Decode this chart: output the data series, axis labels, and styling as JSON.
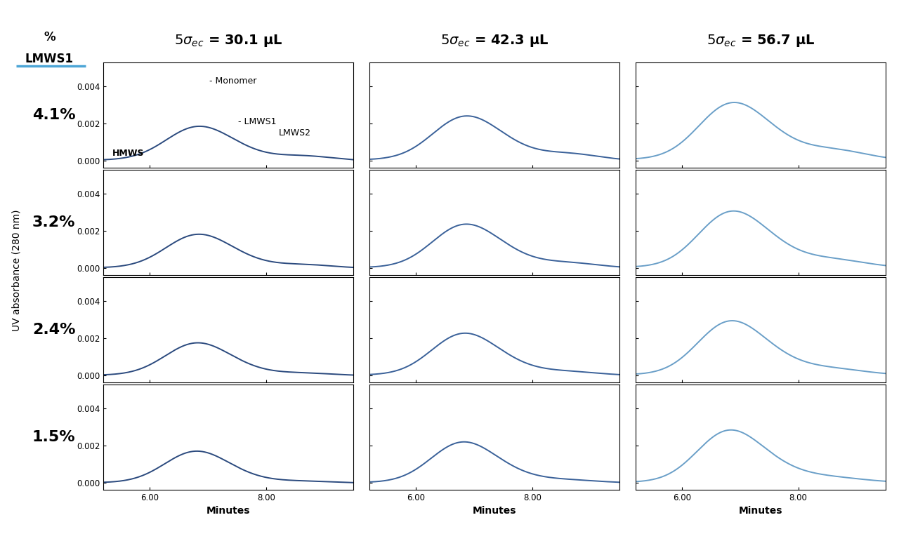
{
  "col_titles": [
    "$5\\sigma_{ec}$ = 30.1 μL",
    "$5\\sigma_{ec}$ = 42.3 μL",
    "$5\\sigma_{ec}$ = 56.7 μL"
  ],
  "row_labels": [
    "4.1%",
    "3.2%",
    "2.4%",
    "1.5%"
  ],
  "ylabel": "UV absorbance (280 nm)",
  "xlabel": "Minutes",
  "ylim": [
    -0.00035,
    0.0053
  ],
  "xlim": [
    5.2,
    9.5
  ],
  "yticks": [
    0.0,
    0.002,
    0.004
  ],
  "xticks": [
    6.0,
    8.0
  ],
  "line_colors": [
    "#2b4a7e",
    "#3a6199",
    "#6a9fc8"
  ],
  "line_width": 1.4,
  "background_color": "#ffffff",
  "title_underline_color": "#4da6d6",
  "col_header_fontsize": 14,
  "row_label_fontsize": 16,
  "annot_fontsize": 9
}
